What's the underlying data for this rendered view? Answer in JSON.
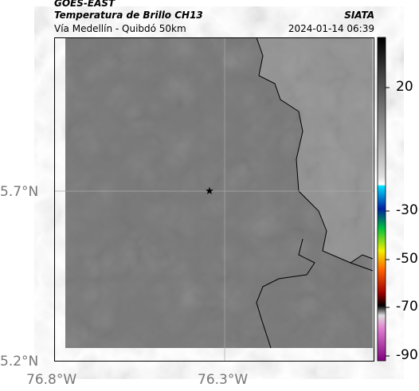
{
  "header": {
    "title": "GOES-EAST",
    "subtitle": "Temperatura de Brillo CH13",
    "location": "Vía Medellín - Quibdó 50km",
    "source": "SIATA",
    "timestamp": "2024-01-14 06:39"
  },
  "axes": {
    "y_labels": [
      "5.7°N",
      "5.2°N"
    ],
    "x_labels": [
      "76.8°W",
      "76.3°W"
    ]
  },
  "colorbar": {
    "ticks": [
      20,
      -30,
      -50,
      -70,
      -90
    ]
  }
}
